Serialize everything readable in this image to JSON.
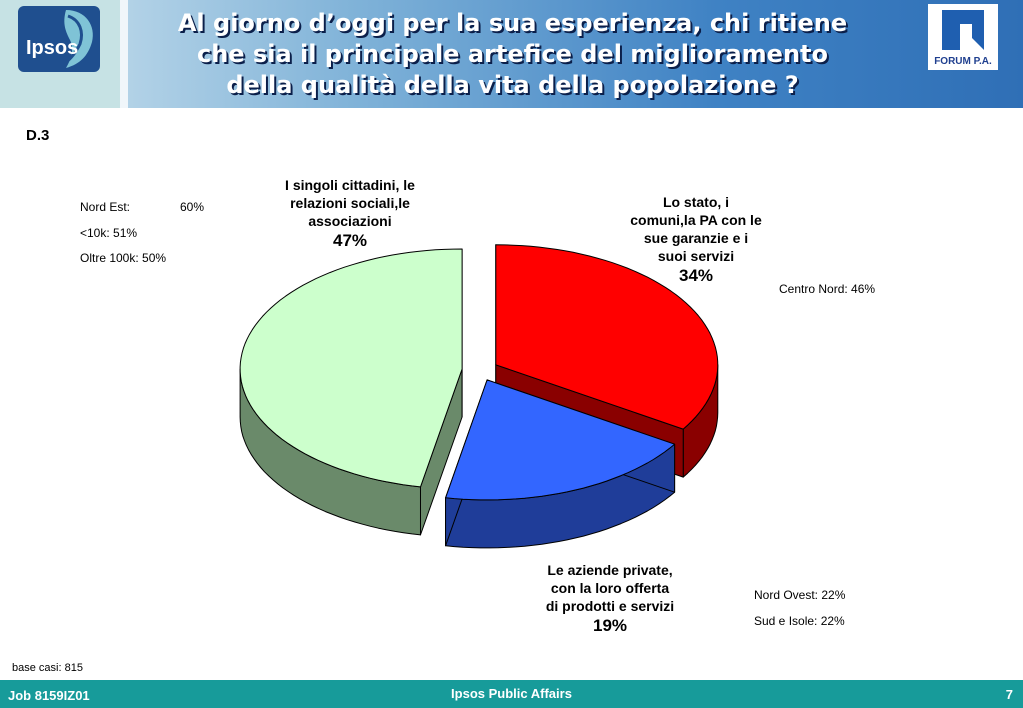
{
  "header": {
    "title_lines": [
      "Al giorno d’oggi per la sua esperienza, chi ritiene",
      "che sia il principale artefice del miglioramento",
      "della qualità della vita della popolazione ?"
    ],
    "left_logo_text": "Ipsos",
    "right_logo_text": "FORUM P.A."
  },
  "question_code": "D.3",
  "notes": {
    "left": {
      "row1_label": "Nord Est:",
      "row1_value": "60%",
      "row2": "<10k: 51%",
      "row3": "Oltre 100k: 50%"
    },
    "right_top": "Centro Nord: 46%",
    "bottom_right": [
      "Nord Ovest: 22%",
      "Sud e Isole: 22%"
    ]
  },
  "chart_data": {
    "type": "pie",
    "title": "",
    "slices": [
      {
        "label": "Lo stato, i comuni,la PA con le sue garanzie e i suoi servizi",
        "label_lines": [
          "Lo stato, i",
          "comuni,la PA con le",
          "sue garanzie e i",
          "suoi servizi"
        ],
        "value": 34,
        "value_label": "34%",
        "color": "#ff0000",
        "side_color": "#8a0000"
      },
      {
        "label": "Le aziende private, con la loro offerta di prodotti e servizi",
        "label_lines": [
          "Le aziende private,",
          "con la loro offerta",
          "di prodotti e servizi"
        ],
        "value": 19,
        "value_label": "19%",
        "color": "#3366ff",
        "side_color": "#1f3d99"
      },
      {
        "label": "I singoli cittadini, le relazioni sociali,le associazioni",
        "label_lines": [
          "I singoli cittadini, le",
          "relazioni sociali,le",
          "associazioni"
        ],
        "value": 47,
        "value_label": "47%",
        "color": "#ccffcc",
        "side_color": "#6a8a6a"
      }
    ],
    "exploded": true,
    "three_d": true
  },
  "base_text": "base casi: 815",
  "footer": {
    "job": "Job 8159IZ01",
    "center": "Ipsos Public Affairs",
    "page": "7"
  },
  "colors": {
    "footer": "#179b9a",
    "header_dark": "#2f6fb6"
  }
}
